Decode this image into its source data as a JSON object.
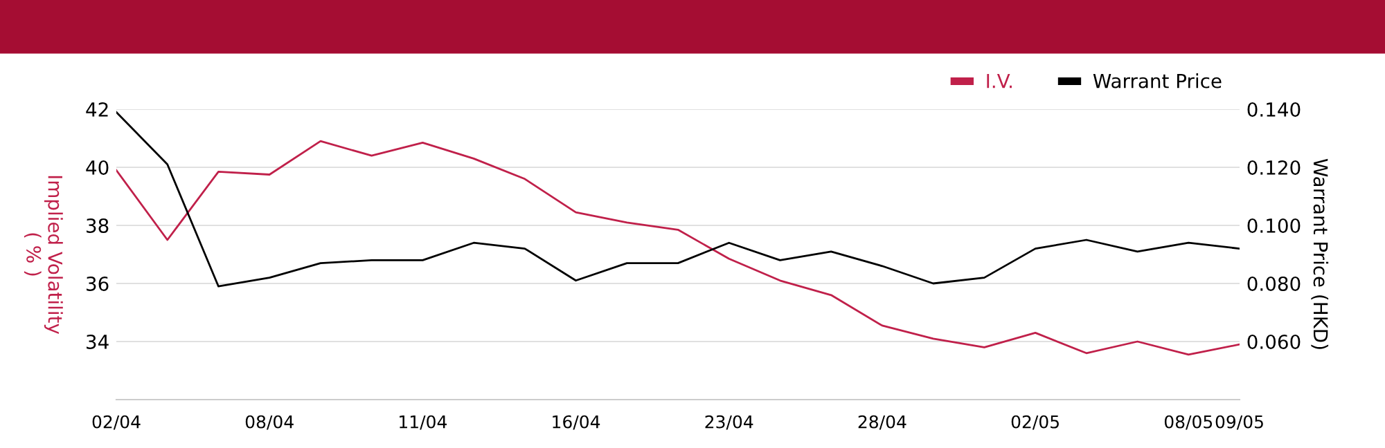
{
  "chart_data": {
    "type": "line",
    "categories": [
      "02/04",
      null,
      null,
      "08/04",
      null,
      null,
      "11/04",
      null,
      null,
      "16/04",
      null,
      null,
      "23/04",
      null,
      null,
      "28/04",
      null,
      null,
      "02/05",
      null,
      null,
      "08/05",
      "09/05"
    ],
    "series": [
      {
        "name": "I.V.",
        "color": "#c0204a",
        "values": [
          39.9,
          37.5,
          39.85,
          39.75,
          40.9,
          40.4,
          40.85,
          40.3,
          39.6,
          38.45,
          38.1,
          37.85,
          36.85,
          36.1,
          35.6,
          34.55,
          34.1,
          33.8,
          34.3,
          33.6,
          34.0,
          33.55,
          33.9
        ]
      },
      {
        "name": "Warrant Price",
        "color": "#000000",
        "axis": "y2",
        "values": [
          0.139,
          0.121,
          0.079,
          0.082,
          0.087,
          0.088,
          0.088,
          0.094,
          0.092,
          0.081,
          0.087,
          0.087,
          0.094,
          0.088,
          0.091,
          0.086,
          0.08,
          0.082,
          0.092,
          0.095,
          0.091,
          0.094,
          0.092
        ]
      }
    ],
    "ylabel": "Implied Volatility\n( % )",
    "y2label": "Warrant Price (HKD)",
    "ylim": [
      32,
      42
    ],
    "yticks": [
      {
        "value": 32,
        "label": null
      },
      34,
      36,
      38,
      40,
      42
    ],
    "y2lim": [
      0.04,
      0.14
    ],
    "y2ticks": [
      {
        "value": 0.04,
        "label": null
      },
      {
        "value": 0.06,
        "label": "0.060"
      },
      {
        "value": 0.08,
        "label": "0.080"
      },
      {
        "value": 0.1,
        "label": "0.100"
      },
      {
        "value": 0.12,
        "label": "0.120"
      },
      {
        "value": 0.14,
        "label": "0.140"
      }
    ],
    "grid": "y",
    "legend": "top right",
    "marker": "none",
    "line_style": "solid"
  }
}
